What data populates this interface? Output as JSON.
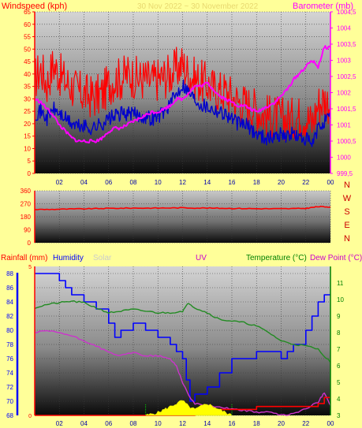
{
  "header": {
    "left_title": "Windspeed (kph)",
    "center_title": "30 Nov 2022 ~ 30 November 2022",
    "right_title": "Barometer (mb)"
  },
  "bottom_header": {
    "rainfall": "Rainfall (mm)",
    "humidity": "Humidity",
    "solar": "Solar",
    "uv": "UV",
    "temperature": "Temperature (°C)",
    "dewpoint": "Dew Point (°C)"
  },
  "colors": {
    "background": "#ffff99",
    "wind_gust": "#ff0000",
    "wind_avg": "#0000cc",
    "barometer": "#ff00ff",
    "direction": "#ff0000",
    "humidity": "#0000ff",
    "temperature": "#228b22",
    "dewpoint": "#cc33cc",
    "rain": "#ff0000",
    "solar": "#ffff00",
    "label_left": "#ff0000",
    "label_right": "#ff00ff",
    "temp_label": "#008000",
    "solar_label": "#cccccc",
    "uv_label": "#cc00cc",
    "compass": "#cc0000"
  },
  "compass_labels": [
    "N",
    "W",
    "S",
    "E",
    "N"
  ],
  "chart_data": [
    {
      "type": "line",
      "name": "wind_and_barometer",
      "x_ticks": [
        "02",
        "04",
        "06",
        "08",
        "10",
        "12",
        "14",
        "16",
        "18",
        "20",
        "22",
        "00"
      ],
      "xlim": [
        0,
        24
      ],
      "y_left": {
        "label": "Windspeed (kph)",
        "lim": [
          0,
          65
        ],
        "ticks": [
          "0",
          "5",
          "10",
          "15",
          "20",
          "25",
          "30",
          "35",
          "40",
          "45",
          "50",
          "55",
          "60",
          "65"
        ]
      },
      "y_right": {
        "label": "Barometer (mb)",
        "lim": [
          999.5,
          1004.5
        ],
        "ticks": [
          "999,5",
          "1000",
          "1000,5",
          "1001",
          "1001,5",
          "1002",
          "1002,5",
          "1003",
          "1003,5",
          "1004",
          "1004,5"
        ]
      },
      "series": [
        {
          "key": "gust",
          "axis": "left",
          "x": [
            0,
            0.5,
            1,
            1.5,
            2,
            2.5,
            3,
            3.5,
            4,
            4.5,
            5,
            5.5,
            6,
            6.5,
            7,
            7.5,
            8,
            8.5,
            9,
            9.5,
            10,
            10.5,
            11,
            11.5,
            12,
            12.5,
            13,
            13.5,
            14,
            14.5,
            15,
            15.5,
            16,
            16.5,
            17,
            17.5,
            18,
            18.5,
            19,
            19.5,
            20,
            20.5,
            21,
            21.5,
            22,
            22.5,
            23,
            23.5,
            24
          ],
          "y": [
            38,
            42,
            36,
            44,
            40,
            37,
            35,
            33,
            32,
            31,
            31,
            32,
            36,
            38,
            38,
            40,
            39,
            38,
            38,
            37,
            38,
            39,
            40,
            42,
            44,
            40,
            38,
            37,
            36,
            34,
            33,
            33,
            31,
            29,
            28,
            27,
            26,
            24,
            23,
            23,
            22,
            22,
            22,
            23,
            23,
            20,
            28,
            30,
            28
          ]
        },
        {
          "key": "average",
          "axis": "left",
          "x": [
            0,
            0.5,
            1,
            1.5,
            2,
            2.5,
            3,
            3.5,
            4,
            4.5,
            5,
            5.5,
            6,
            6.5,
            7,
            7.5,
            8,
            8.5,
            9,
            9.5,
            10,
            10.5,
            11,
            11.5,
            12,
            12.5,
            13,
            13.5,
            14,
            14.5,
            15,
            15.5,
            16,
            16.5,
            17,
            17.5,
            18,
            18.5,
            19,
            19.5,
            20,
            20.5,
            21,
            21.5,
            22,
            22.5,
            23,
            23.5,
            24
          ],
          "y": [
            24,
            25,
            22,
            26,
            24,
            22,
            20,
            19,
            19,
            18,
            19,
            20,
            22,
            23,
            24,
            24,
            24,
            23,
            23,
            22,
            23,
            25,
            28,
            32,
            36,
            33,
            30,
            28,
            27,
            26,
            25,
            24,
            22,
            20,
            20,
            18,
            16,
            15,
            14,
            15,
            16,
            15,
            16,
            14,
            14,
            11,
            18,
            21,
            22
          ]
        },
        {
          "key": "barometer",
          "axis": "right",
          "x": [
            0,
            0.5,
            1,
            1.5,
            2,
            2.5,
            3,
            3.5,
            4,
            4.5,
            5,
            5.5,
            6,
            6.5,
            7,
            7.5,
            8,
            8.5,
            9,
            9.5,
            10,
            10.5,
            11,
            11.5,
            12,
            12.5,
            13,
            13.5,
            14,
            14.5,
            15,
            15.5,
            16,
            16.5,
            17,
            17.5,
            18,
            18.5,
            19,
            19.5,
            20,
            20.5,
            21,
            21.5,
            22,
            22.5,
            23,
            23.5,
            24
          ],
          "y": [
            1001.8,
            1001.7,
            1001.5,
            1001.3,
            1001.0,
            1000.8,
            1000.6,
            1000.5,
            1000.5,
            1000.5,
            1000.5,
            1000.6,
            1000.8,
            1000.9,
            1000.9,
            1001.0,
            1001.1,
            1001.2,
            1001.3,
            1001.4,
            1001.4,
            1001.5,
            1001.6,
            1001.8,
            1001.8,
            1002.0,
            1002.2,
            1002.2,
            1002.3,
            1002.1,
            1001.9,
            1001.8,
            1001.7,
            1001.6,
            1001.6,
            1001.5,
            1001.4,
            1001.5,
            1001.6,
            1001.7,
            1001.9,
            1002.1,
            1002.4,
            1002.6,
            1002.8,
            1003.0,
            1002.8,
            1003.4,
            1003.4
          ]
        }
      ]
    },
    {
      "type": "line",
      "name": "wind_direction",
      "x_ticks": [],
      "xlim": [
        0,
        24
      ],
      "ylim": [
        0,
        360
      ],
      "y_ticks": [
        "0",
        "90",
        "180",
        "270",
        "360"
      ],
      "series": [
        {
          "key": "direction",
          "x": [
            0,
            2,
            4,
            6,
            8,
            10,
            12,
            14,
            16,
            18,
            20,
            22,
            23,
            24
          ],
          "y": [
            230,
            232,
            235,
            238,
            240,
            240,
            242,
            240,
            238,
            236,
            235,
            238,
            250,
            248
          ]
        }
      ]
    },
    {
      "type": "line",
      "name": "humidity_temperature",
      "x_ticks": [
        "02",
        "04",
        "06",
        "08",
        "10",
        "12",
        "14",
        "16",
        "18",
        "20",
        "22",
        "00"
      ],
      "xlim": [
        0,
        24
      ],
      "y_left_humidity": {
        "lim": [
          68,
          89
        ],
        "ticks": [
          "68",
          "70",
          "72",
          "74",
          "76",
          "78",
          "80",
          "82",
          "84",
          "86",
          "88"
        ]
      },
      "y_left_rain": {
        "lim": [
          0,
          5
        ],
        "ticks": [
          "0",
          "5"
        ]
      },
      "y_right_temp": {
        "lim": [
          3,
          12
        ],
        "ticks": [
          "3",
          "4",
          "5",
          "6",
          "7",
          "8",
          "9",
          "10",
          "11"
        ]
      },
      "series": [
        {
          "key": "humidity",
          "axis": "humidity",
          "x": [
            0,
            1,
            2,
            2.5,
            3,
            4,
            5,
            6,
            6.5,
            7,
            8,
            9,
            10,
            11,
            11.5,
            12,
            12.3,
            12.6,
            13,
            14,
            15,
            16,
            17,
            18,
            19,
            20,
            20.5,
            21,
            22,
            22.5,
            23,
            23.5,
            24
          ],
          "y": [
            88,
            88,
            87,
            86,
            85,
            84,
            83,
            81,
            79,
            80,
            81,
            80,
            79,
            78,
            77,
            76,
            73,
            70,
            71,
            72,
            74,
            76,
            76,
            77,
            77,
            76,
            77,
            78,
            80,
            82,
            84,
            85,
            85
          ]
        },
        {
          "key": "temperature",
          "axis": "temp",
          "x": [
            0,
            1,
            2,
            3,
            4,
            5,
            6,
            7,
            8,
            9,
            10,
            11,
            12,
            12.5,
            13,
            14,
            15,
            16,
            17,
            18,
            19,
            20,
            21,
            22,
            23,
            24
          ],
          "y": [
            9.5,
            9.7,
            9.8,
            9.9,
            9.8,
            9.5,
            9.2,
            9.3,
            9.4,
            9.3,
            9.2,
            9.2,
            9.3,
            9.8,
            9.5,
            9.2,
            8.8,
            8.7,
            8.6,
            8.4,
            8.0,
            7.5,
            7.3,
            7.2,
            7.0,
            6.2
          ]
        },
        {
          "key": "dewpoint",
          "axis": "temp",
          "x": [
            0,
            1,
            2,
            3,
            4,
            5,
            6,
            7,
            8,
            9,
            10,
            11,
            11.5,
            12,
            12.5,
            13,
            14,
            15,
            16,
            17,
            18,
            19,
            20,
            21,
            22,
            23,
            23.5,
            24
          ],
          "y": [
            8.0,
            8.1,
            8.0,
            7.8,
            7.5,
            7.2,
            6.8,
            6.6,
            6.8,
            6.6,
            6.6,
            6.4,
            6.0,
            5.0,
            4.2,
            3.7,
            3.6,
            3.5,
            3.4,
            3.3,
            3.2,
            3.2,
            3.0,
            3.1,
            3.4,
            3.8,
            4.4,
            3.6
          ]
        },
        {
          "key": "rainfall",
          "axis": "rain",
          "x": [
            0,
            12,
            13,
            18,
            22,
            23,
            23.5,
            24
          ],
          "y": [
            0,
            0,
            0.2,
            0.3,
            0.3,
            0.4,
            0.6,
            0.6
          ]
        },
        {
          "key": "solar",
          "axis": "rain",
          "x": [
            9,
            9.5,
            10,
            10.5,
            11,
            11.5,
            12,
            12.5,
            13,
            13.5,
            14,
            14.5,
            15,
            15.5,
            16
          ],
          "y": [
            0,
            0.05,
            0.1,
            0.2,
            0.3,
            0.4,
            0.5,
            0.3,
            0.2,
            0.3,
            0.4,
            0.3,
            0.2,
            0.1,
            0
          ]
        }
      ]
    }
  ]
}
